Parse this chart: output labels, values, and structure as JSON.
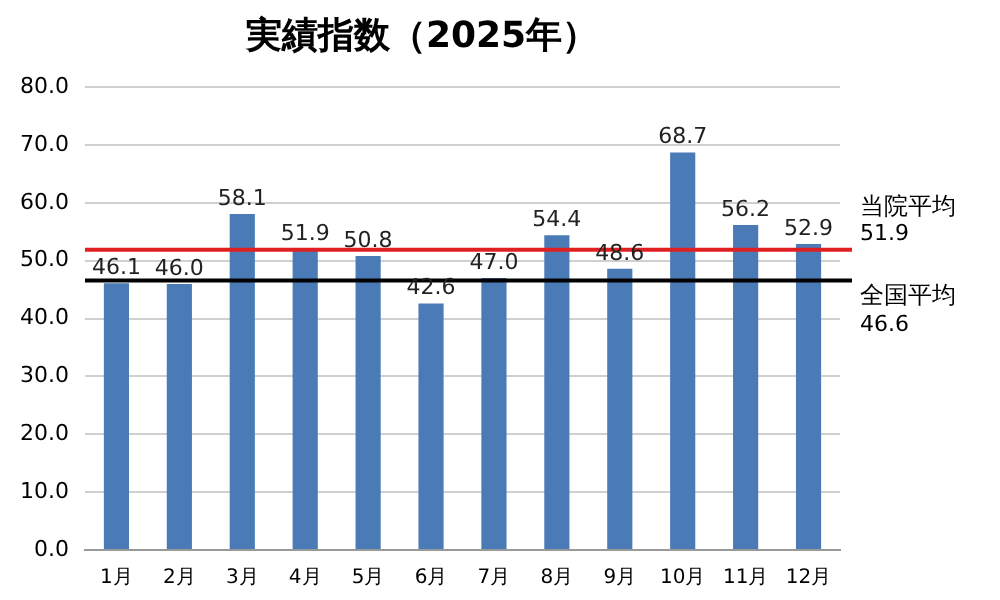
{
  "chart_data": {
    "type": "bar",
    "title": "実績指数（2025年）",
    "categories": [
      "1月",
      "2月",
      "3月",
      "4月",
      "5月",
      "6月",
      "7月",
      "8月",
      "9月",
      "10月",
      "11月",
      "12月"
    ],
    "values": [
      46.1,
      46.0,
      58.1,
      51.9,
      50.8,
      42.6,
      47.0,
      54.4,
      48.6,
      68.7,
      56.2,
      52.9
    ],
    "value_labels": [
      "46.1",
      "46.0",
      "58.1",
      "51.9",
      "50.8",
      "42.6",
      "47.0",
      "54.4",
      "48.6",
      "68.7",
      "56.2",
      "52.9"
    ],
    "color": "#4a7bb7",
    "ylim": [
      0,
      80
    ],
    "yticks": [
      {
        "value": 0,
        "label": "0.0"
      },
      {
        "value": 10,
        "label": "10.0"
      },
      {
        "value": 20,
        "label": "20.0"
      },
      {
        "value": 30,
        "label": "30.0"
      },
      {
        "value": 40,
        "label": "40.0"
      },
      {
        "value": 50,
        "label": "50.0"
      },
      {
        "value": 60,
        "label": "60.0"
      },
      {
        "value": 70,
        "label": "70.0"
      },
      {
        "value": 80,
        "label": "80.0"
      }
    ],
    "grid": "y",
    "ref_lines": [
      {
        "axis": "y",
        "value": 51.9,
        "label": "当院平均",
        "color": "#e02020"
      },
      {
        "axis": "y",
        "value": 46.6,
        "label": "全国平均",
        "color": "#000000"
      }
    ],
    "annotations": [
      "51.9",
      "46.6"
    ]
  }
}
